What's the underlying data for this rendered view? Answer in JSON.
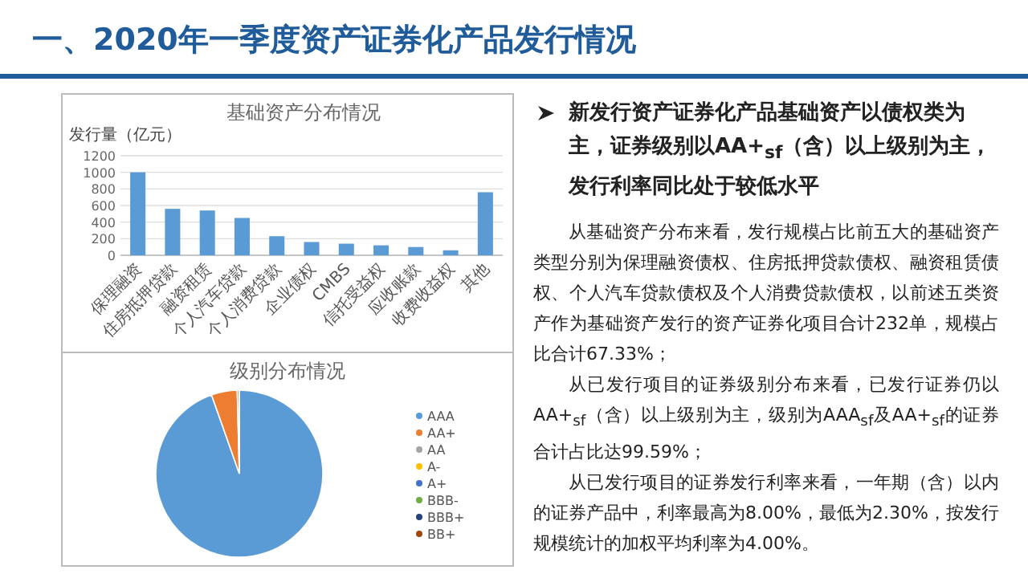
{
  "chart_data": [
    {
      "type": "other",
      "title": "一、2020年一季度资产证券化产品发行情况",
      "subtitle": "新发行资产证券化产品基础资产以债权类为主，证券级别以AA+$_{sf}$（含）以上级别为主，发行利率同比处于较低水平",
      "annotations": [
        "从基础资产分布来看，发行规模占比前五大的基础资产类型分别为保理融资债权、住房抵押贷款债权、融资租赁债权、个人汽车贷款债权及个人消费贷款债权，以前述五类资产作为基础资产发行的资产证券化项目合计232单，规模占比合计67.33%；",
        "从已发行项目的证券级别分布来看，已发行证券仍以AA+$_{sf}$（含）以上级别为主，级别为AAA$_{sf}$及AA+$_{sf}$的证券合计占比达99.59%；",
        "从已发行项目的证券发行利率来看，一年期（含）以内的证券产品中，利率最高为8.00%，最低为2.30%，按发行规模统计的加权平均利率为4.00%。"
      ]
    },
    {
      "type": "bar",
      "title": "基础资产分布情况",
      "ylabel": "发行量（亿元）",
      "categories": [
        "保理融资",
        "住房抵押贷款",
        "融资租赁",
        "个人汽车贷款",
        "个人消费贷款",
        "企业债权",
        "CMBS",
        "信托受益权",
        "应收账款",
        "收费收益权",
        "其他"
      ],
      "values": [
        1000,
        560,
        540,
        450,
        230,
        160,
        140,
        120,
        100,
        60,
        760
      ],
      "color": "#5b9bd5",
      "ylim": [
        0,
        1200
      ],
      "yticks": [
        0,
        200,
        400,
        600,
        800,
        1000,
        1200
      ],
      "grid": "y"
    },
    {
      "type": "pie",
      "title": "级别分布情况",
      "categories": [
        "AAA",
        "AA+",
        "AA",
        "A-",
        "A+",
        "BBB-",
        "BBB+",
        "BB+"
      ],
      "values": [
        94.6,
        5.0,
        0.4,
        null,
        null,
        null,
        null,
        null
      ],
      "colors": [
        "#5b9bd5",
        "#ed7d31",
        "#a5a5a5",
        "#ffc000",
        "#4472c4",
        "#70ad47",
        "#264478",
        "#9e480e"
      ],
      "legend": "right"
    }
  ]
}
